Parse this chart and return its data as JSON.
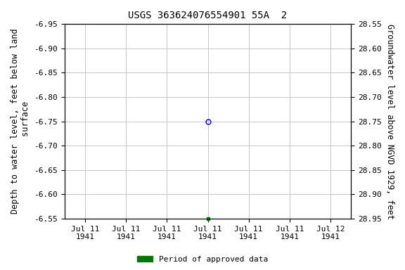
{
  "title": "USGS 363624076554901 55A  2",
  "ylabel_left": "Depth to water level, feet below land\n surface",
  "ylabel_right": "Groundwater level above NGVD 1929, feet",
  "ylim_left": [
    -6.55,
    -6.95
  ],
  "ylim_right": [
    28.95,
    28.55
  ],
  "yticks_left": [
    -6.95,
    -6.9,
    -6.85,
    -6.8,
    -6.75,
    -6.7,
    -6.65,
    -6.6,
    -6.55
  ],
  "yticks_right": [
    28.55,
    28.6,
    28.65,
    28.7,
    28.75,
    28.8,
    28.85,
    28.9,
    28.95
  ],
  "xtick_labels": [
    "Jul 11\n1941",
    "Jul 11\n1941",
    "Jul 11\n1941",
    "Jul 11\n1941",
    "Jul 11\n1941",
    "Jul 11\n1941",
    "Jul 12\n1941"
  ],
  "xtick_positions": [
    0,
    1,
    2,
    3,
    4,
    5,
    6
  ],
  "data_point_x": 3.0,
  "data_point_y": -6.75,
  "data_point_color": "#0000bb",
  "green_dot_x": 3.0,
  "green_dot_y": -6.55,
  "green_dot_color": "#007700",
  "legend_label": "Period of approved data",
  "legend_color": "#007700",
  "background_color": "#ffffff",
  "grid_color": "#bbbbbb",
  "title_fontsize": 10,
  "label_fontsize": 8.5,
  "tick_fontsize": 8,
  "font_family": "monospace"
}
